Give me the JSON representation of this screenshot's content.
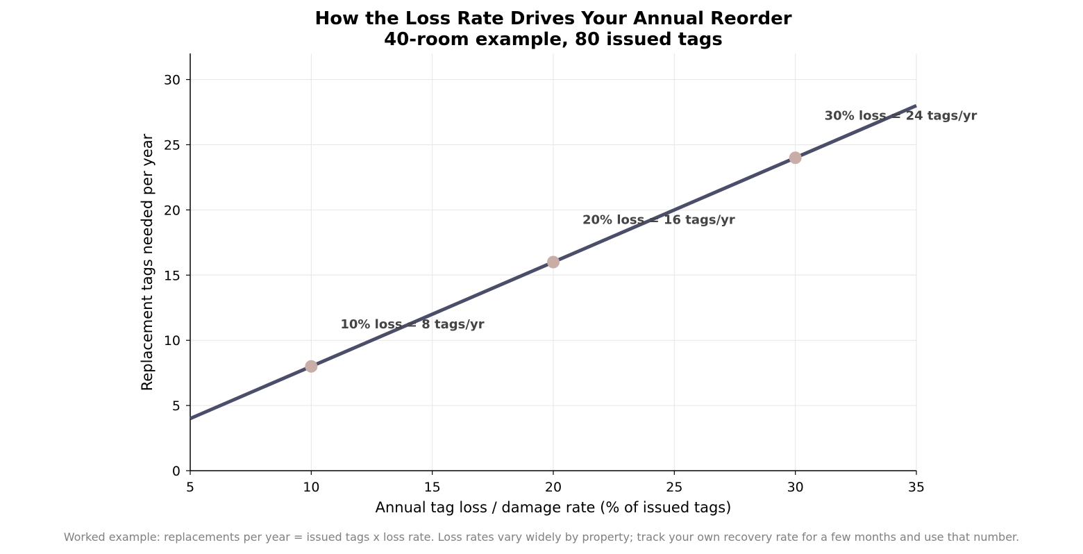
{
  "chart_data": {
    "type": "line",
    "title_line1": "How the Loss Rate Drives Your Annual Reorder",
    "title_line2": "40-room example, 80 issued tags",
    "xlabel": "Annual tag loss / damage rate (% of issued tags)",
    "ylabel": "Replacement tags needed per year",
    "xlim": [
      5,
      35
    ],
    "ylim": [
      0,
      32
    ],
    "xticks": [
      5,
      10,
      15,
      20,
      25,
      30,
      35
    ],
    "yticks": [
      0,
      5,
      10,
      15,
      20,
      25,
      30
    ],
    "grid": true,
    "line": {
      "x": [
        5,
        35
      ],
      "y": [
        4,
        28
      ],
      "color": "#4a4e69"
    },
    "points": [
      {
        "x": 10,
        "y": 8,
        "label": "10% loss = 8 tags/yr"
      },
      {
        "x": 20,
        "y": 16,
        "label": "20% loss = 16 tags/yr"
      },
      {
        "x": 30,
        "y": 24,
        "label": "30% loss = 24 tags/yr"
      }
    ],
    "point_color": "#c9ada7",
    "annotation_color": "#444444"
  },
  "footnote": "Worked example: replacements per year = issued tags x loss rate. Loss rates vary widely by property; track your own recovery rate for a few months and use that number."
}
